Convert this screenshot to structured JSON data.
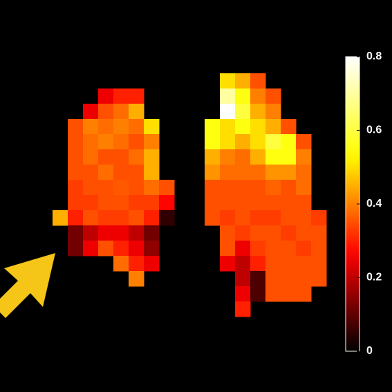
{
  "chart_data": {
    "type": "heatmap",
    "colormap": "hot",
    "clim": [
      0,
      0.8
    ],
    "colorbar_ticks": [
      0,
      0.2,
      0.4,
      0.6,
      0.8
    ],
    "values": [
      [
        null,
        null,
        null,
        null,
        null,
        null,
        null,
        null,
        null,
        null,
        null,
        0.5,
        0.45,
        0.35,
        null,
        null,
        null,
        null
      ],
      [
        null,
        null,
        null,
        0.25,
        0.3,
        0.3,
        null,
        null,
        null,
        null,
        null,
        0.7,
        0.55,
        0.4,
        0.35,
        null,
        null,
        null
      ],
      [
        null,
        null,
        0.25,
        0.35,
        0.38,
        0.45,
        null,
        null,
        null,
        null,
        null,
        0.8,
        0.6,
        0.45,
        0.4,
        null,
        null,
        null
      ],
      [
        null,
        0.35,
        0.4,
        0.38,
        0.4,
        0.38,
        0.5,
        null,
        null,
        null,
        0.55,
        0.5,
        0.55,
        0.5,
        0.45,
        0.35,
        null,
        null
      ],
      [
        null,
        0.35,
        0.38,
        0.4,
        0.38,
        0.35,
        0.4,
        null,
        null,
        null,
        0.55,
        0.5,
        0.45,
        0.5,
        0.6,
        0.55,
        0.35,
        null
      ],
      [
        null,
        0.35,
        0.38,
        0.35,
        0.35,
        0.38,
        0.45,
        null,
        null,
        null,
        0.45,
        0.4,
        0.38,
        0.45,
        0.55,
        0.55,
        0.4,
        null
      ],
      [
        null,
        0.35,
        0.35,
        0.38,
        0.35,
        0.35,
        0.45,
        null,
        null,
        null,
        0.42,
        0.38,
        0.38,
        0.38,
        0.42,
        0.42,
        0.38,
        null
      ],
      [
        null,
        0.33,
        0.35,
        0.35,
        0.36,
        0.35,
        0.38,
        0.35,
        null,
        null,
        0.35,
        0.35,
        0.35,
        0.35,
        0.37,
        0.35,
        0.38,
        null
      ],
      [
        null,
        0.33,
        0.33,
        0.35,
        0.35,
        0.33,
        0.33,
        0.27,
        null,
        null,
        0.35,
        0.35,
        0.35,
        0.35,
        0.35,
        0.35,
        0.35,
        null
      ],
      [
        0.45,
        0.3,
        0.35,
        0.33,
        0.33,
        0.35,
        0.3,
        0.05,
        null,
        null,
        0.35,
        0.33,
        0.35,
        0.33,
        0.33,
        0.35,
        0.35,
        0.33
      ],
      [
        null,
        0.12,
        0.2,
        0.25,
        0.25,
        0.2,
        0.12,
        null,
        null,
        null,
        null,
        0.35,
        0.33,
        0.35,
        0.35,
        0.33,
        0.35,
        0.35
      ],
      [
        null,
        0.12,
        0.25,
        0.35,
        0.3,
        0.25,
        0.15,
        null,
        null,
        null,
        null,
        0.35,
        0.25,
        0.33,
        0.35,
        0.35,
        0.33,
        0.35
      ],
      [
        null,
        null,
        null,
        null,
        0.38,
        0.3,
        0.25,
        null,
        null,
        null,
        null,
        0.25,
        0.2,
        0.3,
        0.35,
        0.35,
        0.35,
        0.35
      ],
      [
        null,
        null,
        null,
        null,
        null,
        0.4,
        null,
        null,
        null,
        null,
        null,
        null,
        0.2,
        0.08,
        0.35,
        0.35,
        0.35,
        0.35
      ],
      [
        null,
        null,
        null,
        null,
        null,
        null,
        null,
        null,
        null,
        null,
        null,
        null,
        0.25,
        0.08,
        0.35,
        0.35,
        0.35,
        null
      ],
      [
        null,
        null,
        null,
        null,
        null,
        null,
        null,
        null,
        null,
        null,
        null,
        null,
        0.3,
        null,
        null,
        null,
        null,
        null
      ]
    ]
  }
}
